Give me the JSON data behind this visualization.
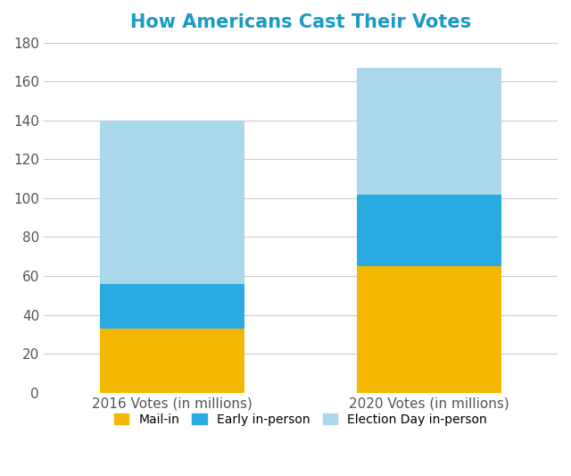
{
  "title": "How Americans Cast Their Votes",
  "title_color": "#1a9bc4",
  "categories": [
    "2016 Votes (in millions)",
    "2020 Votes (in millions)"
  ],
  "mail_in": [
    33,
    65
  ],
  "early_in_person": [
    23,
    37
  ],
  "election_day": [
    84,
    65
  ],
  "colors": {
    "mail_in": "#F5B800",
    "early_in_person": "#29ABE2",
    "election_day": "#A8D8EA"
  },
  "ylim": [
    0,
    180
  ],
  "yticks": [
    0,
    20,
    40,
    60,
    80,
    100,
    120,
    140,
    160,
    180
  ],
  "legend_labels": [
    "Mail-in",
    "Early in-person",
    "Election Day in-person"
  ],
  "background_color": "#ffffff",
  "grid_color": "#cccccc",
  "bar_width": 0.28,
  "x_positions": [
    0.25,
    0.75
  ]
}
